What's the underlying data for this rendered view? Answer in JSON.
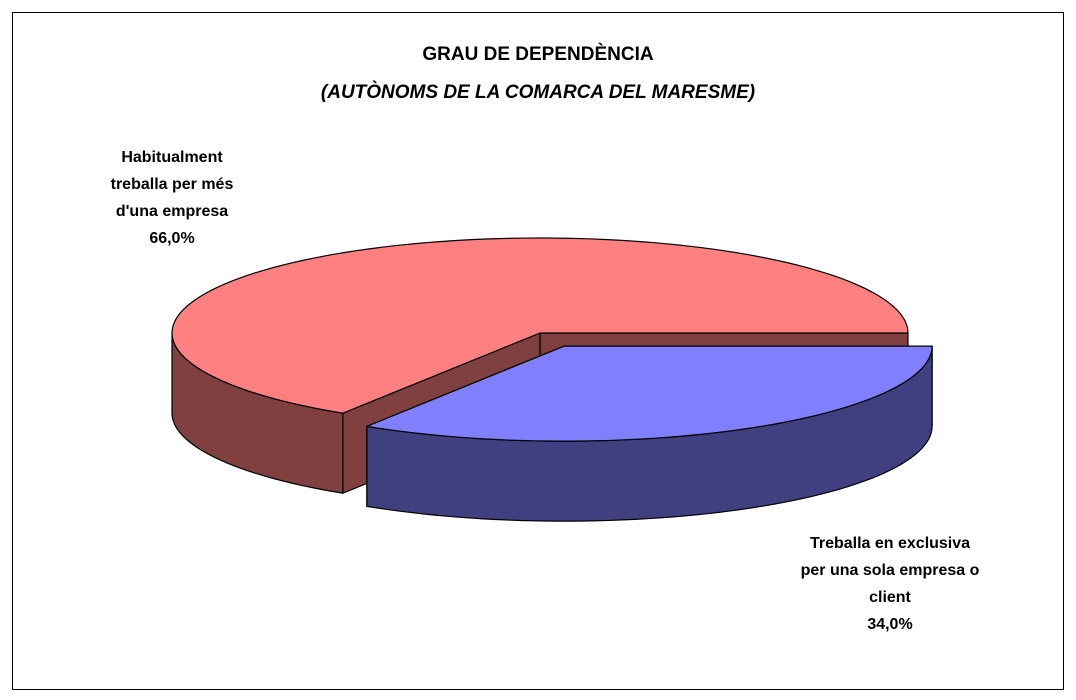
{
  "chart_data": {
    "type": "pie3d",
    "title": "GRAU DE DEPENDÈNCIA",
    "subtitle": "(AUTÒNOMS DE LA COMARCA DEL MARESME)",
    "categories": [
      "Habitualment treballa per més d'una empresa",
      "Treballa en exclusiva per una sola empresa o client"
    ],
    "values": [
      66,
      34
    ],
    "value_labels": [
      "66,0%",
      "34,0%"
    ],
    "colors": [
      "#ff8080",
      "#8080ff"
    ],
    "explode": [
      false,
      true
    ]
  }
}
